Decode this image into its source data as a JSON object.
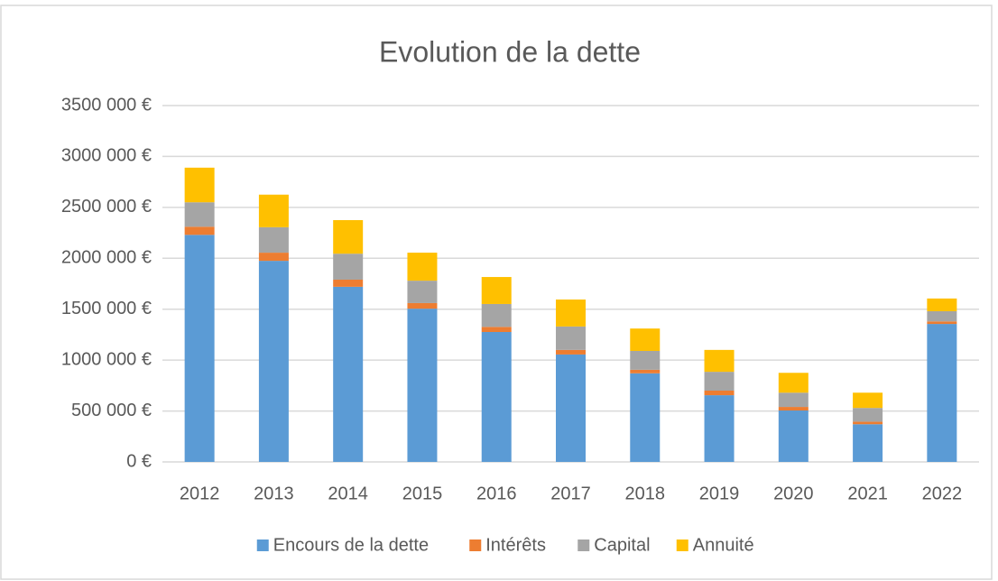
{
  "chart_data": {
    "type": "stacked_bar",
    "title": "Evolution de la dette",
    "categories": [
      "2012",
      "2013",
      "2014",
      "2015",
      "2016",
      "2017",
      "2018",
      "2019",
      "2020",
      "2021",
      "2022"
    ],
    "series": [
      {
        "name": "Encours de la dette",
        "color": "#5b9bd5",
        "values": [
          2230000,
          1975000,
          1720000,
          1505000,
          1276000,
          1055000,
          870000,
          655000,
          505000,
          370000,
          1355000
        ]
      },
      {
        "name": "Intérêts",
        "color": "#ed7d31",
        "values": [
          80000,
          80000,
          70000,
          55000,
          50000,
          45000,
          35000,
          45000,
          35000,
          25000,
          25000
        ]
      },
      {
        "name": "Capital",
        "color": "#a5a5a5",
        "values": [
          240000,
          250000,
          255000,
          220000,
          225000,
          230000,
          185000,
          185000,
          140000,
          135000,
          100000
        ]
      },
      {
        "name": "Annuité",
        "color": "#ffc000",
        "values": [
          340000,
          320000,
          330000,
          275000,
          265000,
          265000,
          220000,
          215000,
          195000,
          150000,
          125000
        ]
      }
    ],
    "ylim": [
      0,
      3500000
    ],
    "yticks": [
      {
        "value": 0,
        "label": "0 €"
      },
      {
        "value": 500000,
        "label": "500 000 €"
      },
      {
        "value": 1000000,
        "label": "1000 000 €"
      },
      {
        "value": 1500000,
        "label": "1500 000 €"
      },
      {
        "value": 2000000,
        "label": "2000 000 €"
      },
      {
        "value": 2500000,
        "label": "2500 000 €"
      },
      {
        "value": 3000000,
        "label": "3000 000 €"
      },
      {
        "value": 3500000,
        "label": "3500 000 €"
      }
    ],
    "grid": true,
    "legend": "bottom"
  }
}
